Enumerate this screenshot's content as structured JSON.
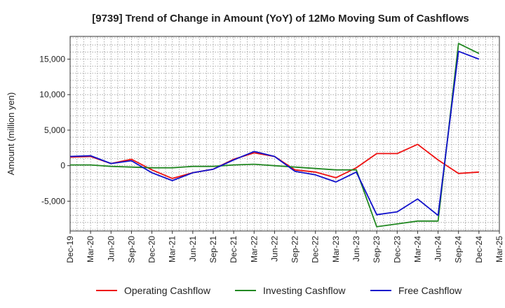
{
  "chart_data": {
    "type": "line",
    "title": "[9739]  Trend of Change in Amount (YoY) of 12Mo Moving Sum of Cashflows",
    "xlabel": "",
    "ylabel": "Amount (million yen)",
    "ylim": [
      -9200,
      18200
    ],
    "yticks": [
      -5000,
      0,
      5000,
      10000,
      15000
    ],
    "ytick_labels": [
      "-5,000",
      "0",
      "5,000",
      "10,000",
      "15,000"
    ],
    "grid": true,
    "legend_position": "bottom",
    "x": [
      "Dec-19",
      "Mar-20",
      "Jun-20",
      "Sep-20",
      "Dec-20",
      "Mar-21",
      "Jun-21",
      "Sep-21",
      "Dec-21",
      "Mar-22",
      "Jun-22",
      "Sep-22",
      "Dec-22",
      "Mar-23",
      "Jun-23",
      "Sep-23",
      "Dec-23",
      "Mar-24",
      "Jun-24",
      "Sep-24",
      "Dec-24",
      "Mar-25"
    ],
    "series": [
      {
        "name": "Operating Cashflow",
        "color": "#ee1111",
        "values": [
          1200,
          1300,
          300,
          900,
          -600,
          -1800,
          -1000,
          -500,
          900,
          1800,
          1300,
          -600,
          -900,
          -1700,
          -300,
          1700,
          1700,
          3000,
          800,
          -1100,
          -900,
          null
        ]
      },
      {
        "name": "Investing Cashflow",
        "color": "#228822",
        "values": [
          100,
          100,
          -100,
          -200,
          -300,
          -300,
          -100,
          -100,
          100,
          200,
          0,
          -200,
          -400,
          -600,
          -600,
          -8600,
          -8200,
          -7800,
          -7800,
          17200,
          15800,
          null
        ]
      },
      {
        "name": "Free Cashflow",
        "color": "#1111cc",
        "values": [
          1300,
          1400,
          300,
          700,
          -1000,
          -2100,
          -1000,
          -500,
          800,
          2000,
          1300,
          -800,
          -1300,
          -2300,
          -900,
          -6900,
          -6500,
          -4700,
          -7000,
          16100,
          15000,
          null
        ]
      }
    ]
  }
}
